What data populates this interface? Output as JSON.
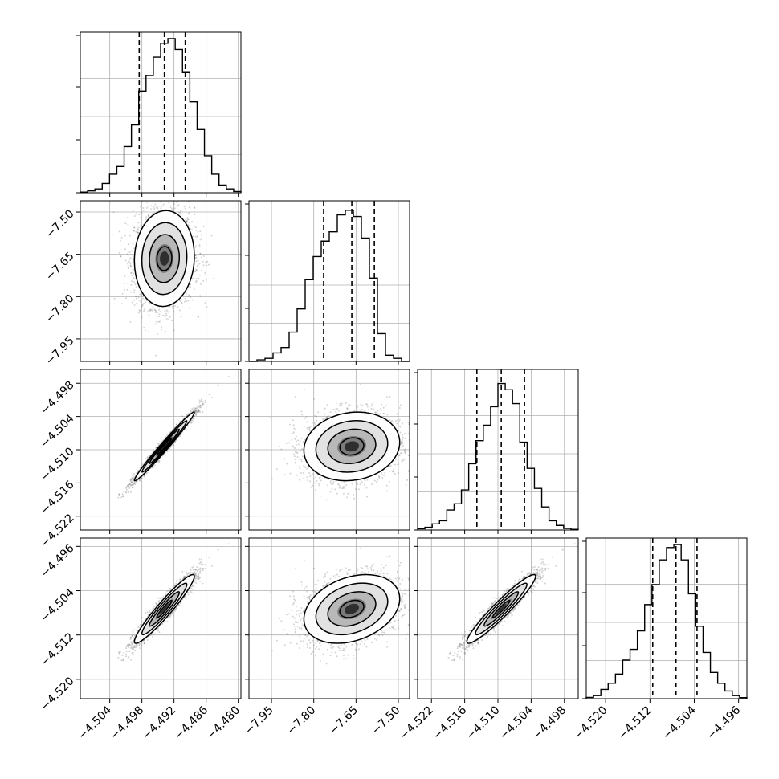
{
  "chart_data": {
    "type": "corner",
    "parameters": [
      {
        "range": [
          -4.5095,
          -4.4795
        ],
        "ticks": [
          "−4.504",
          "−4.498",
          "−4.492",
          "−4.486",
          "−4.480"
        ],
        "tick_values": [
          -4.504,
          -4.498,
          -4.492,
          -4.486,
          -4.48
        ],
        "quantiles": [
          -4.4985,
          -4.4938,
          -4.4899
        ],
        "median": -4.4938
      },
      {
        "range": [
          -8.03,
          -7.46
        ],
        "ticks": [
          "−7.95",
          "−7.80",
          "−7.65",
          "−7.50"
        ],
        "tick_values": [
          -7.95,
          -7.8,
          -7.65,
          -7.5
        ],
        "quantiles": [
          -7.765,
          -7.665,
          -7.585
        ],
        "median": -7.665
      },
      {
        "range": [
          -4.5245,
          -4.4955
        ],
        "ticks": [
          "−4.522",
          "−4.516",
          "−4.510",
          "−4.504",
          "−4.498"
        ],
        "tick_values": [
          -4.522,
          -4.516,
          -4.51,
          -4.504,
          -4.498
        ],
        "quantiles": [
          -4.5138,
          -4.5094,
          -4.5052
        ],
        "median": -4.5094
      },
      {
        "range": [
          -4.5235,
          -4.4945
        ],
        "ticks": [
          "−4.520",
          "−4.512",
          "−4.504",
          "−4.496"
        ],
        "tick_values": [
          -4.52,
          -4.512,
          -4.504,
          -4.496
        ],
        "quantiles": [
          -4.5115,
          -4.5073,
          -4.5035
        ],
        "median": -4.5073
      }
    ],
    "histograms": [
      [
        0.004,
        0.012,
        0.025,
        0.06,
        0.12,
        0.17,
        0.3,
        0.44,
        0.66,
        0.76,
        0.88,
        0.97,
        1.0,
        0.93,
        0.78,
        0.59,
        0.41,
        0.24,
        0.12,
        0.05,
        0.025,
        0.008
      ],
      [
        0.0,
        0.01,
        0.02,
        0.055,
        0.09,
        0.19,
        0.34,
        0.53,
        0.68,
        0.78,
        0.84,
        0.95,
        0.98,
        0.94,
        0.8,
        0.54,
        0.18,
        0.04,
        0.02,
        0.0
      ],
      [
        0.008,
        0.018,
        0.04,
        0.06,
        0.13,
        0.17,
        0.26,
        0.43,
        0.58,
        0.68,
        0.8,
        0.95,
        0.91,
        0.82,
        0.57,
        0.4,
        0.27,
        0.15,
        0.06,
        0.03,
        0.01,
        0.004
      ],
      [
        0.008,
        0.02,
        0.06,
        0.1,
        0.16,
        0.25,
        0.32,
        0.44,
        0.61,
        0.74,
        0.9,
        0.98,
        1.0,
        0.9,
        0.68,
        0.47,
        0.3,
        0.17,
        0.1,
        0.05,
        0.02,
        0.007
      ]
    ],
    "pairs": [
      {
        "row": 1,
        "col": 0,
        "rho": 0.05
      },
      {
        "row": 2,
        "col": 0,
        "rho": 0.985
      },
      {
        "row": 2,
        "col": 1,
        "rho": 0.12
      },
      {
        "row": 3,
        "col": 0,
        "rho": 0.95
      },
      {
        "row": 3,
        "col": 1,
        "rho": 0.3
      },
      {
        "row": 3,
        "col": 2,
        "rho": 0.95
      }
    ],
    "sigmas": [
      0.0028,
      0.085,
      0.0031,
      0.0031
    ],
    "contour_levels_sigma": [
      0.5,
      1.0,
      1.5,
      2.0
    ],
    "grid": true,
    "histogram_ylabels": "none",
    "colors": {
      "contour": "#000000",
      "points": "#666666",
      "quantile_line": "#000000",
      "grid": "#b0b0b0"
    }
  }
}
